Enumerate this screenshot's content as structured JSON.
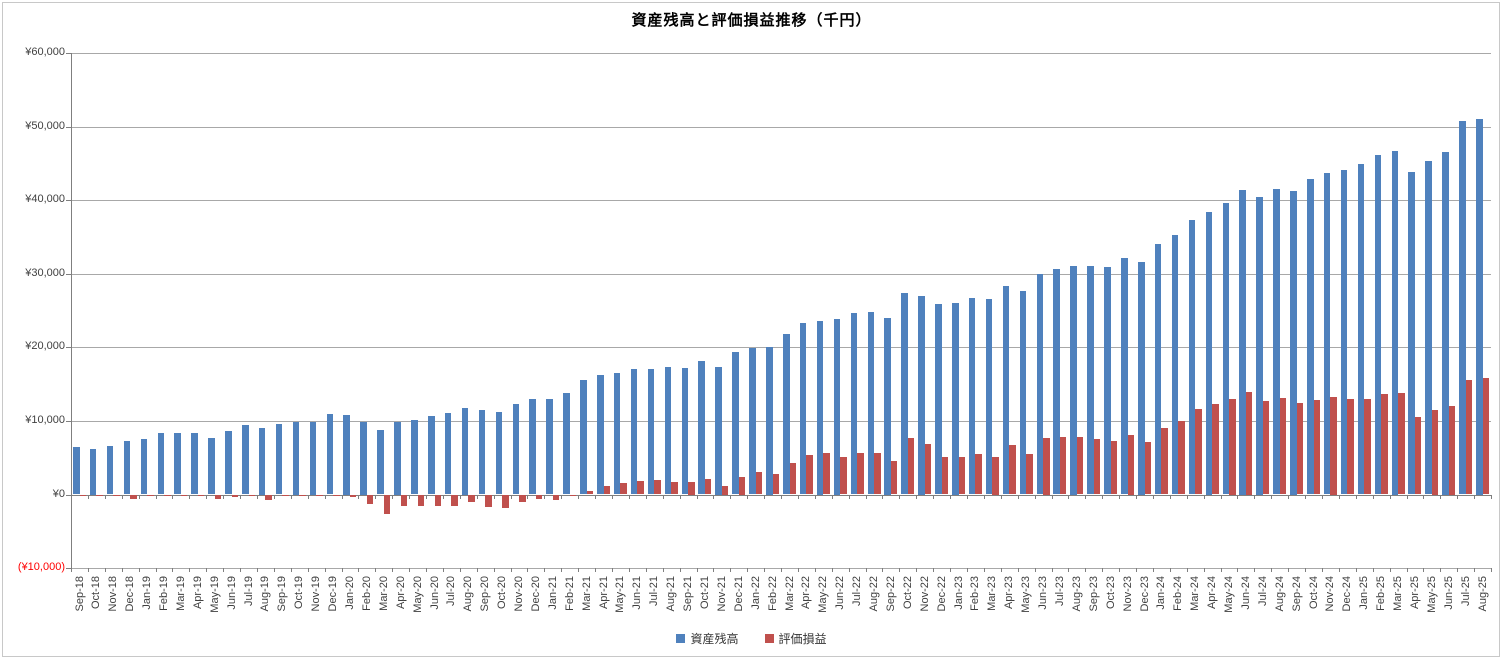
{
  "chart_data": {
    "type": "bar",
    "title": "資産残高と評価損益推移（千円）",
    "categories": [
      "Sep-18",
      "Oct-18",
      "Nov-18",
      "Dec-18",
      "Jan-19",
      "Feb-19",
      "Mar-19",
      "Apr-19",
      "May-19",
      "Jun-19",
      "Jul-19",
      "Aug-19",
      "Sep-19",
      "Oct-19",
      "Nov-19",
      "Dec-19",
      "Jan-20",
      "Feb-20",
      "Mar-20",
      "Apr-20",
      "May-20",
      "Jun-20",
      "Jul-20",
      "Aug-20",
      "Sep-20",
      "Oct-20",
      "Nov-20",
      "Dec-20",
      "Jan-21",
      "Feb-21",
      "Mar-21",
      "Apr-21",
      "May-21",
      "Jun-21",
      "Jul-21",
      "Aug-21",
      "Sep-21",
      "Oct-21",
      "Nov-21",
      "Dec-21",
      "Jan-22",
      "Feb-22",
      "Mar-22",
      "Apr-22",
      "May-22",
      "Jun-22",
      "Jul-22",
      "Aug-22",
      "Sep-22",
      "Oct-22",
      "Nov-22",
      "Dec-22",
      "Jan-23",
      "Feb-23",
      "Mar-23",
      "Apr-23",
      "May-23",
      "Jun-23",
      "Jul-23",
      "Aug-23",
      "Sep-23",
      "Oct-23",
      "Nov-23",
      "Dec-23",
      "Jan-24",
      "Feb-24",
      "Mar-24",
      "Apr-24",
      "May-24",
      "Jun-24",
      "Jul-24",
      "Aug-24",
      "Sep-24",
      "Oct-24",
      "Nov-24",
      "Dec-24",
      "Jan-25",
      "Feb-25",
      "Mar-25",
      "Apr-25",
      "May-25",
      "Jun-25",
      "Jul-25",
      "Aug-25"
    ],
    "series": [
      {
        "name": "資産残高",
        "color": "#4F81BD",
        "values": [
          6400,
          6250,
          6650,
          7250,
          7600,
          8300,
          8400,
          8400,
          7700,
          8600,
          9400,
          9100,
          9550,
          9850,
          9850,
          10900,
          10800,
          9850,
          8750,
          9850,
          10100,
          10650,
          11100,
          11750,
          11450,
          11250,
          12250,
          12950,
          13000,
          13850,
          15600,
          16200,
          16550,
          17100,
          17100,
          17300,
          17150,
          18100,
          17400,
          19350,
          19950,
          20050,
          21850,
          23350,
          23650,
          23850,
          24650,
          24850,
          24050,
          27350,
          27050,
          25900,
          26100,
          26750,
          26550,
          28350,
          27700,
          29950,
          30600,
          31050,
          31000,
          30950,
          32200,
          31600,
          34000,
          35250,
          37350,
          38400,
          39600,
          41450,
          40500,
          41550,
          41250,
          42850,
          43650,
          44150,
          44950,
          46100,
          46750,
          43850,
          45300,
          46550,
          50700,
          51100
        ]
      },
      {
        "name": "評価損益",
        "color": "#C0504D",
        "values": [
          -100,
          -150,
          -200,
          -650,
          -250,
          -100,
          -150,
          -200,
          -600,
          -300,
          -250,
          -800,
          -250,
          -200,
          -150,
          -150,
          -300,
          -1250,
          -2600,
          -1600,
          -1500,
          -1600,
          -1500,
          -1050,
          -1750,
          -1850,
          -1000,
          -650,
          -750,
          -250,
          500,
          1200,
          1550,
          1850,
          2000,
          1750,
          1700,
          2150,
          1150,
          2450,
          3100,
          2750,
          4250,
          5400,
          5600,
          5150,
          5600,
          5600,
          4500,
          7650,
          6850,
          5150,
          5050,
          5550,
          5100,
          6700,
          5550,
          7750,
          7800,
          7800,
          7500,
          7250,
          8150,
          7150,
          9050,
          9950,
          11650,
          12350,
          13050,
          14000,
          12650,
          13100,
          12450,
          12800,
          13250,
          12950,
          12950,
          13700,
          13850,
          10550,
          11550,
          12100,
          15600,
          15800
        ]
      }
    ],
    "y_axis": {
      "min": -10000,
      "max": 60000,
      "step": 10000,
      "tick_labels": [
        {
          "text": "¥60,000",
          "value": 60000,
          "color": "#3f3f3f"
        },
        {
          "text": "¥50,000",
          "value": 50000,
          "color": "#3f3f3f"
        },
        {
          "text": "¥40,000",
          "value": 40000,
          "color": "#3f3f3f"
        },
        {
          "text": "¥30,000",
          "value": 30000,
          "color": "#3f3f3f"
        },
        {
          "text": "¥20,000",
          "value": 20000,
          "color": "#3f3f3f"
        },
        {
          "text": "¥10,000",
          "value": 10000,
          "color": "#3f3f3f"
        },
        {
          "text": "¥0",
          "value": 0,
          "color": "#3f3f3f"
        },
        {
          "text": "(¥10,000)",
          "value": -10000,
          "color": "#ff0000"
        }
      ]
    },
    "legend": {
      "position": "bottom",
      "entries": [
        "資産残高",
        "評価損益"
      ]
    },
    "grid": true,
    "xlabel": "",
    "ylabel": ""
  }
}
